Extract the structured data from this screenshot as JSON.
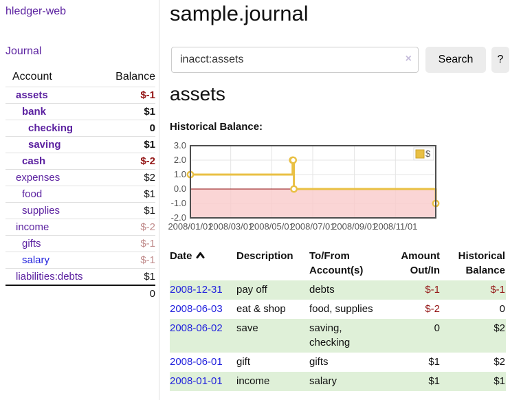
{
  "app": {
    "title": "hledger-web"
  },
  "sidebar": {
    "journal_label": "Journal",
    "accounts": {
      "header_account": "Account",
      "header_balance": "Balance",
      "rows": [
        {
          "name": "assets",
          "balance": "$-1",
          "level": 1,
          "bold": true,
          "neg": true
        },
        {
          "name": "bank",
          "balance": "$1",
          "level": 2,
          "bold": true
        },
        {
          "name": "checking",
          "balance": "0",
          "level": 3,
          "bold": true
        },
        {
          "name": "saving",
          "balance": "$1",
          "level": 3,
          "bold": true
        },
        {
          "name": "cash",
          "balance": "$-2",
          "level": 2,
          "bold": true,
          "neg": true
        },
        {
          "name": "expenses",
          "balance": "$2",
          "level": 1
        },
        {
          "name": "food",
          "balance": "$1",
          "level": 2
        },
        {
          "name": "supplies",
          "balance": "$1",
          "level": 2
        },
        {
          "name": "income",
          "balance": "$-2",
          "level": 1,
          "muted": true
        },
        {
          "name": "gifts",
          "balance": "$-1",
          "level": 2,
          "muted": true
        },
        {
          "name": "salary",
          "balance": "$-1",
          "level": 2,
          "muted": true,
          "unvisited": true
        },
        {
          "name": "liabilities:debts",
          "balance": "$1",
          "level": 1
        }
      ],
      "total": "0"
    }
  },
  "main": {
    "title": "sample.journal",
    "search": {
      "value": "inacct:assets",
      "clear_icon": "×",
      "button_label": "Search",
      "help_label": "?"
    },
    "account_heading": "assets",
    "register": {
      "sort": "ascending",
      "headers": {
        "date": "Date",
        "description": "Description",
        "accounts": "To/From Account(s)",
        "amount": "Amount Out/In",
        "balance": "Historical Balance"
      },
      "rows": [
        {
          "date": "2008-12-31",
          "description": "pay off",
          "accounts": "debts",
          "amount": "$-1",
          "balance": "$-1",
          "amount_neg": true,
          "balance_neg": true
        },
        {
          "date": "2008-06-03",
          "description": "eat & shop",
          "accounts": "food, supplies",
          "amount": "$-2",
          "balance": "0",
          "amount_neg": true
        },
        {
          "date": "2008-06-02",
          "description": "save",
          "accounts": "saving, checking",
          "amount": "0",
          "balance": "$2"
        },
        {
          "date": "2008-06-01",
          "description": "gift",
          "accounts": "gifts",
          "amount": "$1",
          "balance": "$2"
        },
        {
          "date": "2008-01-01",
          "description": "income",
          "accounts": "salary",
          "amount": "$1",
          "balance": "$1"
        }
      ]
    }
  },
  "chart_data": {
    "type": "line",
    "step": true,
    "title": "Historical Balance:",
    "series": [
      {
        "name": "$",
        "color": "#e9c044",
        "points": [
          [
            "2008-01-01",
            1.0
          ],
          [
            "2008-06-01",
            2.0
          ],
          [
            "2008-06-02",
            2.0
          ],
          [
            "2008-06-03",
            0.0
          ],
          [
            "2008-12-31",
            -1.0
          ]
        ]
      }
    ],
    "x_range": [
      "2008-01-01",
      "2008-12-31"
    ],
    "x_ticks": [
      "2008/01/01",
      "2008/03/01",
      "2008/05/01",
      "2008/07/01",
      "2008/09/01",
      "2008/11/01"
    ],
    "y_ticks": [
      3.0,
      2.0,
      1.0,
      0.0,
      -1.0,
      -2.0
    ],
    "ylim": [
      -2.0,
      3.0
    ],
    "grid": true,
    "legend_position": "top-right",
    "negative_region_color": "#f9caca",
    "zero_line_color": "#8f0e10",
    "colors": {
      "border": "#4e4e4e",
      "gridline": "#e4e4e4",
      "tick_text": "#545454"
    }
  },
  "colors": {
    "link_purple": "#5b21a0",
    "link_blue": "#2222dd",
    "negative_strong": "#941616",
    "negative_muted": "#c08b8b",
    "row_green": "#dff0d8",
    "button_bg": "#ececec"
  }
}
